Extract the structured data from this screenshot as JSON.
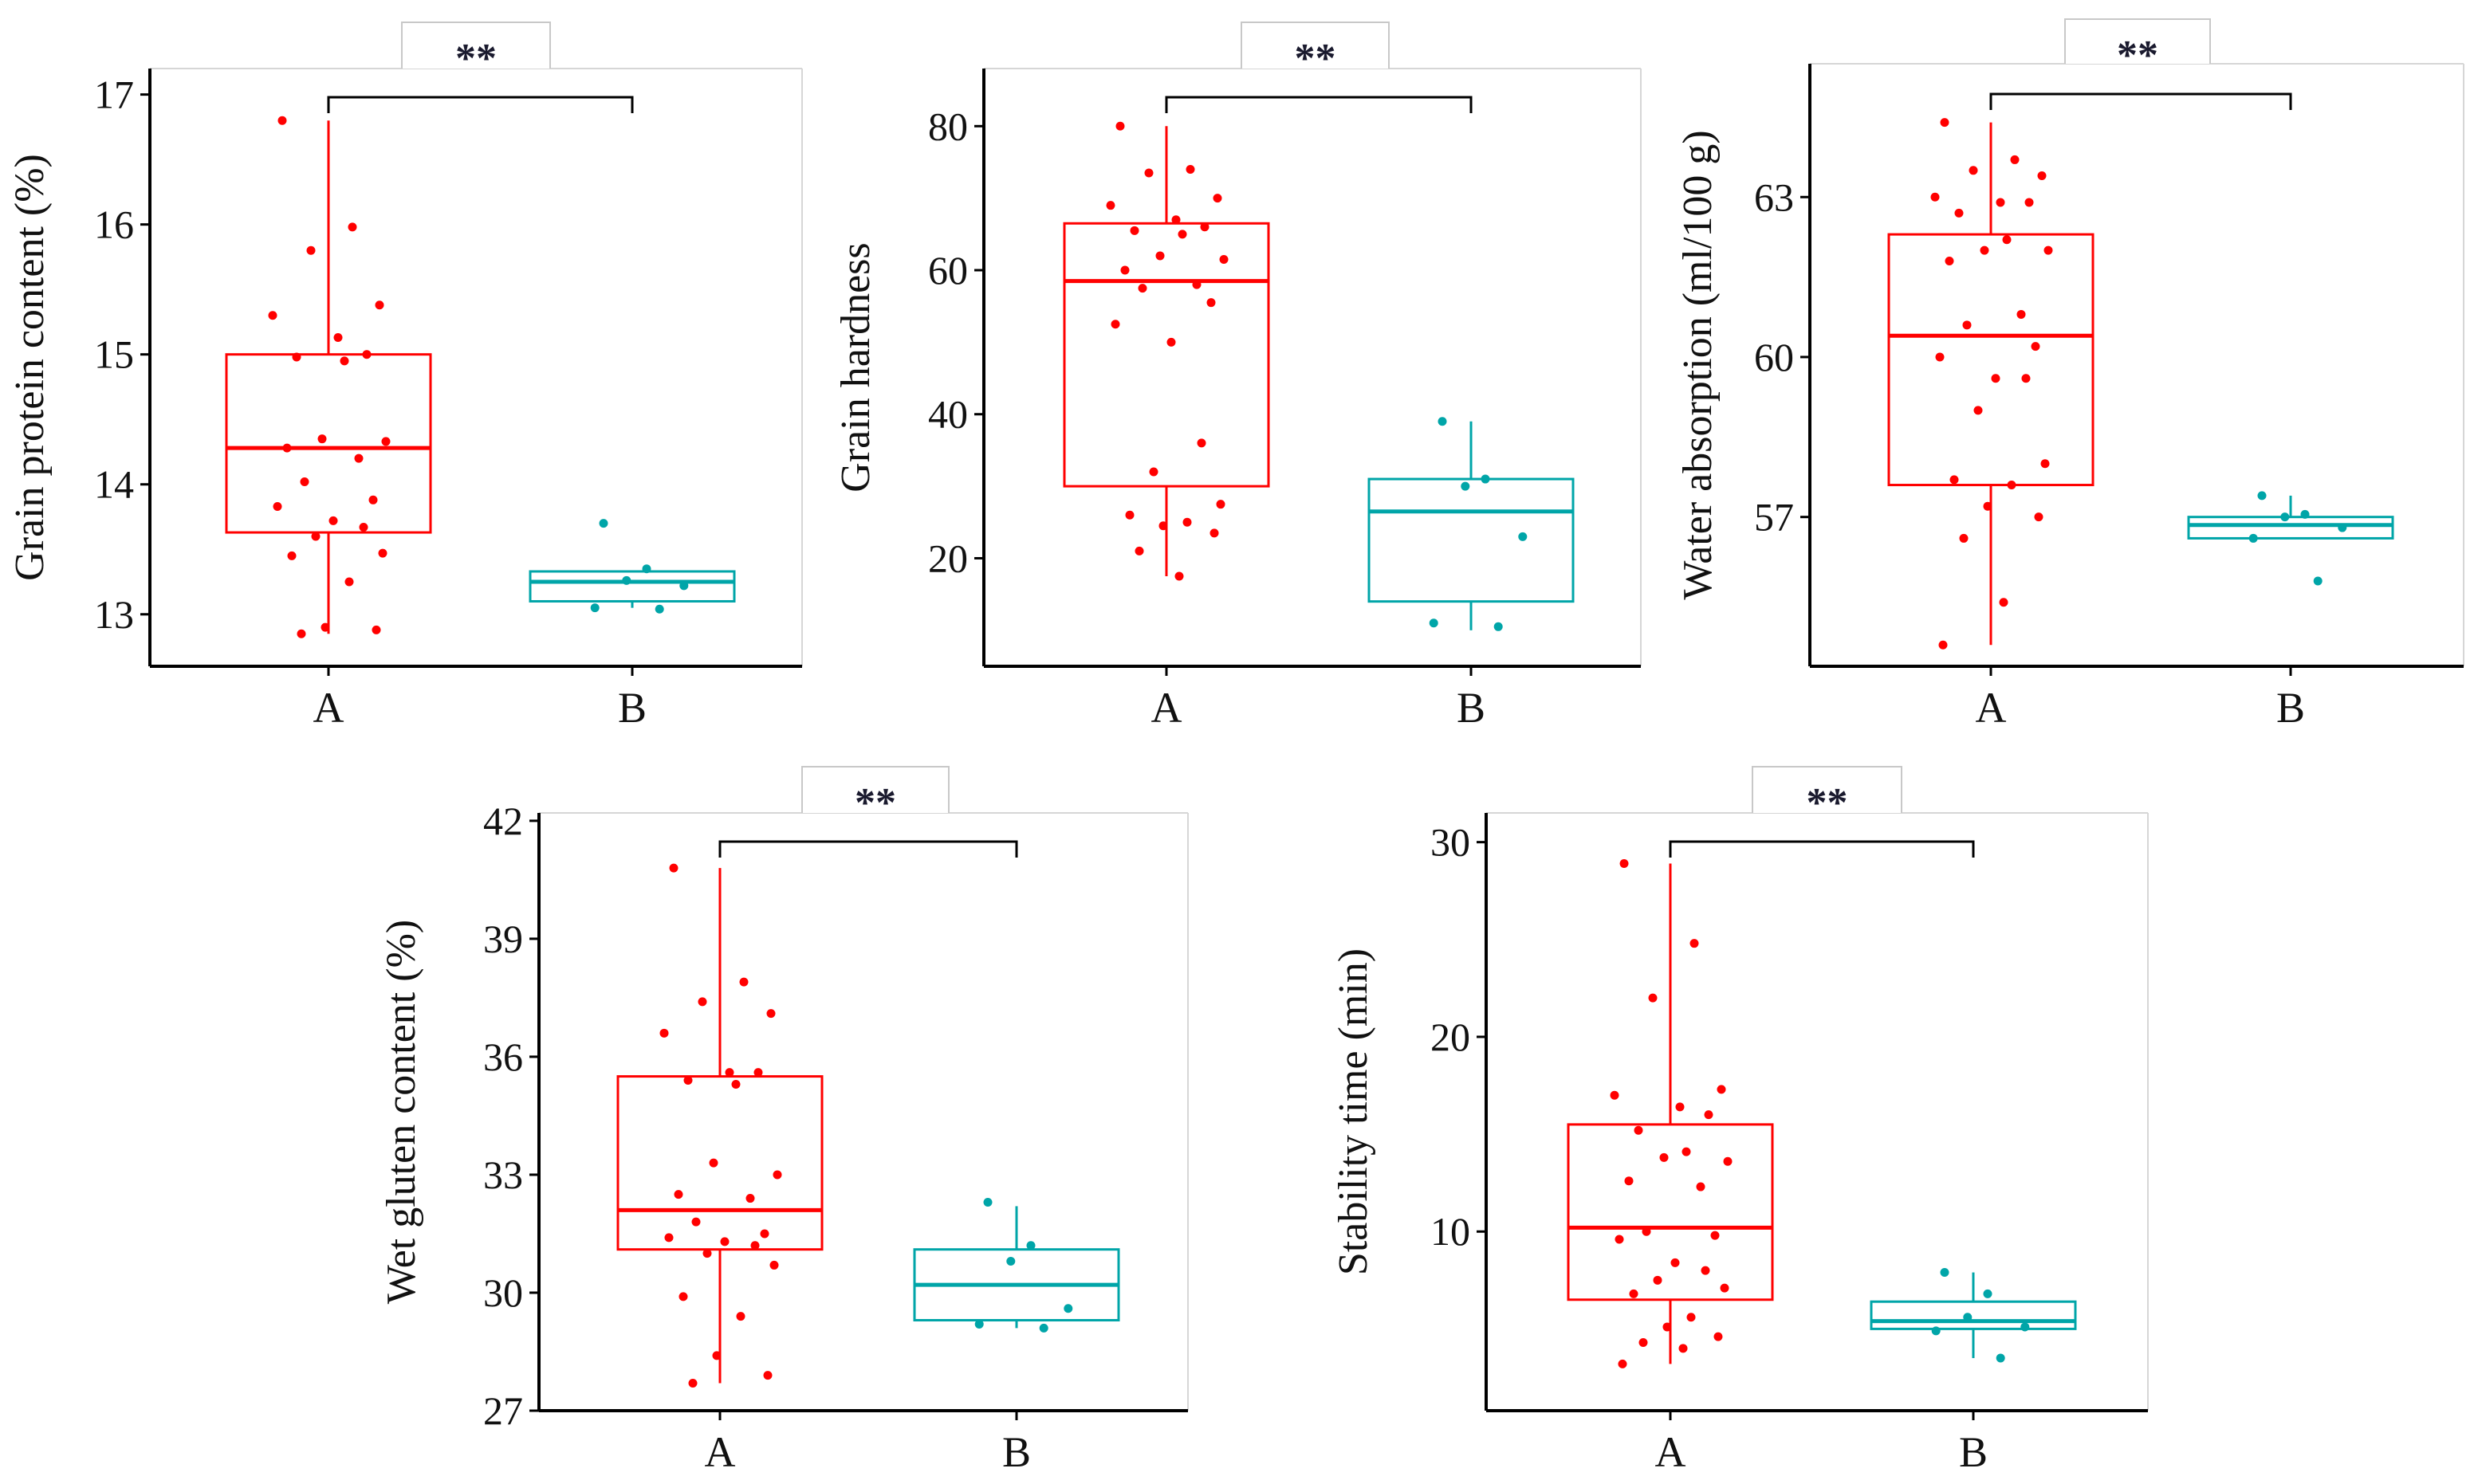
{
  "colors": {
    "A": "#ff0000",
    "B": "#00a5a8",
    "axis": "#000000",
    "tab_border": "#c8c8c8"
  },
  "chart_data": [
    {
      "type": "box",
      "ylabel": "Grain protein content (%)",
      "significance": "**",
      "ylim": [
        12.6,
        17.2
      ],
      "yticks": [
        "13",
        "14",
        "15",
        "16",
        "17"
      ],
      "categories": [
        "A",
        "B"
      ],
      "boxes": [
        {
          "group": "A",
          "q1": 13.63,
          "median": 14.28,
          "q3": 15.0,
          "whisker_low": 12.85,
          "whisker_high": 16.8,
          "points": [
            16.8,
            15.98,
            15.8,
            15.38,
            15.3,
            15.13,
            15.0,
            14.98,
            14.95,
            14.35,
            14.33,
            14.28,
            14.2,
            14.02,
            13.88,
            13.83,
            13.72,
            13.67,
            13.6,
            13.47,
            13.45,
            13.25,
            12.9,
            12.88,
            12.85
          ]
        },
        {
          "group": "B",
          "q1": 13.1,
          "median": 13.25,
          "q3": 13.33,
          "whisker_low": 13.05,
          "whisker_high": 13.33,
          "points": [
            13.7,
            13.35,
            13.26,
            13.22,
            13.05,
            13.04
          ]
        }
      ]
    },
    {
      "type": "box",
      "ylabel": "Grain hardness",
      "significance": "**",
      "ylim": [
        5,
        88
      ],
      "yticks": [
        "20",
        "40",
        "60",
        "80"
      ],
      "categories": [
        "A",
        "B"
      ],
      "boxes": [
        {
          "group": "A",
          "q1": 30,
          "median": 58.5,
          "q3": 66.5,
          "whisker_low": 17.5,
          "whisker_high": 80,
          "points": [
            80,
            74,
            73.5,
            70,
            69,
            67,
            66,
            65.5,
            65,
            62,
            61.5,
            60,
            58,
            57.5,
            55.5,
            52.5,
            50,
            36,
            32,
            27.5,
            26,
            25,
            24.5,
            23.5,
            21,
            17.5
          ]
        },
        {
          "group": "B",
          "q1": 14,
          "median": 26.5,
          "q3": 31,
          "whisker_low": 10,
          "whisker_high": 39,
          "points": [
            39,
            31,
            30,
            23,
            11,
            10.5
          ]
        }
      ]
    },
    {
      "type": "box",
      "ylabel": "Water absorption (ml/100 g)",
      "significance": "**",
      "ylim": [
        54.2,
        65.5
      ],
      "yticks": [
        "57",
        "60",
        "63"
      ],
      "categories": [
        "A",
        "B"
      ],
      "boxes": [
        {
          "group": "A",
          "q1": 57.6,
          "median": 60.4,
          "q3": 62.3,
          "whisker_low": 54.6,
          "whisker_high": 64.4,
          "points": [
            64.4,
            63.7,
            63.5,
            63.4,
            63.0,
            62.9,
            62.9,
            62.7,
            62.2,
            62.0,
            62.0,
            61.8,
            60.8,
            60.6,
            60.2,
            60.0,
            59.6,
            59.6,
            59.0,
            58.0,
            57.7,
            57.6,
            57.2,
            57.0,
            56.6,
            55.4,
            54.6
          ]
        },
        {
          "group": "B",
          "q1": 56.6,
          "median": 56.85,
          "q3": 57.0,
          "whisker_low": 56.6,
          "whisker_high": 57.4,
          "points": [
            57.4,
            57.05,
            57.0,
            56.8,
            56.6,
            55.8
          ]
        }
      ]
    },
    {
      "type": "box",
      "ylabel": "Wet gluten content (%)",
      "significance": "**",
      "ylim": [
        27,
        42.2
      ],
      "yticks": [
        "27",
        "30",
        "33",
        "36",
        "39",
        "42"
      ],
      "categories": [
        "A",
        "B"
      ],
      "boxes": [
        {
          "group": "A",
          "q1": 31.1,
          "median": 32.1,
          "q3": 35.5,
          "whisker_low": 27.7,
          "whisker_high": 40.8,
          "points": [
            40.8,
            37.9,
            37.4,
            37.1,
            36.6,
            35.6,
            35.6,
            35.4,
            35.3,
            33.3,
            33.0,
            32.5,
            32.4,
            31.8,
            31.5,
            31.4,
            31.3,
            31.2,
            31.0,
            30.7,
            29.9,
            29.4,
            28.4,
            27.9,
            27.7
          ]
        },
        {
          "group": "B",
          "q1": 29.3,
          "median": 30.2,
          "q3": 31.1,
          "whisker_low": 29.1,
          "whisker_high": 32.2,
          "points": [
            32.3,
            31.2,
            30.8,
            29.6,
            29.2,
            29.1
          ]
        }
      ]
    },
    {
      "type": "box",
      "ylabel": "Stability time (min)",
      "significance": "**",
      "ylim": [
        0.8,
        31.5
      ],
      "yticks": [
        "10",
        "20",
        "30"
      ],
      "categories": [
        "A",
        "B"
      ],
      "boxes": [
        {
          "group": "A",
          "q1": 6.5,
          "median": 10.2,
          "q3": 15.5,
          "whisker_low": 3.2,
          "whisker_high": 28.9,
          "points": [
            28.9,
            24.8,
            22.0,
            17.3,
            17.0,
            16.4,
            16.0,
            15.2,
            14.1,
            13.8,
            13.6,
            12.6,
            12.3,
            10.0,
            9.8,
            9.6,
            8.4,
            8.0,
            7.5,
            7.1,
            6.8,
            5.6,
            5.1,
            4.6,
            4.3,
            4.0,
            3.2
          ]
        },
        {
          "group": "B",
          "q1": 5.0,
          "median": 5.4,
          "q3": 6.4,
          "whisker_low": 3.5,
          "whisker_high": 7.9,
          "points": [
            7.9,
            6.8,
            5.6,
            5.1,
            4.9,
            3.5
          ]
        }
      ]
    }
  ]
}
